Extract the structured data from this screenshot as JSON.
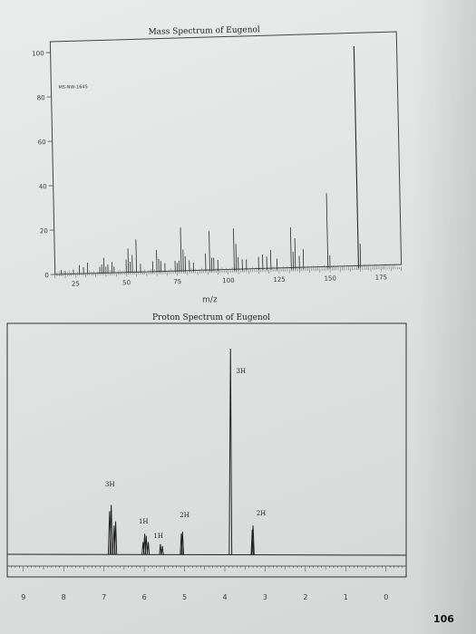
{
  "page_number": "106",
  "chart_data": [
    {
      "type": "bar",
      "title": "Mass Spectrum of Eugenol",
      "xlabel": "m/z",
      "ylabel": "",
      "watermark": "MS-NW-1645",
      "xlim": [
        15,
        185
      ],
      "ylim": [
        0,
        100
      ],
      "x_ticks": [
        25,
        50,
        75,
        100,
        125,
        150,
        175
      ],
      "y_ticks": [
        0,
        20,
        40,
        60,
        80,
        100
      ],
      "peaks": [
        {
          "mz": 18,
          "i": 2
        },
        {
          "mz": 20,
          "i": 1.5
        },
        {
          "mz": 24,
          "i": 2
        },
        {
          "mz": 27,
          "i": 4
        },
        {
          "mz": 29,
          "i": 3
        },
        {
          "mz": 31,
          "i": 5
        },
        {
          "mz": 37,
          "i": 3
        },
        {
          "mz": 38,
          "i": 4
        },
        {
          "mz": 39,
          "i": 7
        },
        {
          "mz": 40,
          "i": 3
        },
        {
          "mz": 41,
          "i": 4
        },
        {
          "mz": 43,
          "i": 5
        },
        {
          "mz": 44,
          "i": 3
        },
        {
          "mz": 50,
          "i": 6
        },
        {
          "mz": 51,
          "i": 11
        },
        {
          "mz": 52,
          "i": 5
        },
        {
          "mz": 53,
          "i": 8
        },
        {
          "mz": 55,
          "i": 15
        },
        {
          "mz": 57,
          "i": 4
        },
        {
          "mz": 63,
          "i": 5
        },
        {
          "mz": 65,
          "i": 10
        },
        {
          "mz": 66,
          "i": 6
        },
        {
          "mz": 67,
          "i": 5
        },
        {
          "mz": 69,
          "i": 4
        },
        {
          "mz": 74,
          "i": 5
        },
        {
          "mz": 75,
          "i": 4
        },
        {
          "mz": 76,
          "i": 5
        },
        {
          "mz": 77,
          "i": 20
        },
        {
          "mz": 78,
          "i": 10
        },
        {
          "mz": 79,
          "i": 7
        },
        {
          "mz": 81,
          "i": 5
        },
        {
          "mz": 83,
          "i": 4
        },
        {
          "mz": 89,
          "i": 8
        },
        {
          "mz": 91,
          "i": 18
        },
        {
          "mz": 92,
          "i": 6
        },
        {
          "mz": 93,
          "i": 6
        },
        {
          "mz": 95,
          "i": 5
        },
        {
          "mz": 103,
          "i": 19
        },
        {
          "mz": 104,
          "i": 12
        },
        {
          "mz": 105,
          "i": 6
        },
        {
          "mz": 107,
          "i": 5
        },
        {
          "mz": 109,
          "i": 5
        },
        {
          "mz": 115,
          "i": 6
        },
        {
          "mz": 117,
          "i": 7
        },
        {
          "mz": 119,
          "i": 6
        },
        {
          "mz": 121,
          "i": 9
        },
        {
          "mz": 124,
          "i": 5
        },
        {
          "mz": 131,
          "i": 19
        },
        {
          "mz": 132,
          "i": 8
        },
        {
          "mz": 133,
          "i": 14
        },
        {
          "mz": 135,
          "i": 6
        },
        {
          "mz": 137,
          "i": 9
        },
        {
          "mz": 149,
          "i": 34
        },
        {
          "mz": 150,
          "i": 6
        },
        {
          "mz": 164,
          "i": 100
        },
        {
          "mz": 165,
          "i": 11
        }
      ]
    },
    {
      "type": "line",
      "title": "Proton Spectrum of Eugenol",
      "xlabel": "",
      "ylabel": "",
      "xlim": [
        9.4,
        -0.5
      ],
      "x_ticks": [
        9,
        8,
        7,
        6,
        5,
        4,
        3,
        2,
        1,
        0
      ],
      "baseline_rel": 0.0,
      "peaks": [
        {
          "ppm": 6.86,
          "h": 0.21,
          "w": 1.5
        },
        {
          "ppm": 6.82,
          "h": 0.24,
          "w": 1.5
        },
        {
          "ppm": 6.75,
          "h": 0.14,
          "w": 1.2
        },
        {
          "ppm": 6.71,
          "h": 0.16,
          "w": 1.2
        },
        {
          "ppm": 6.03,
          "h": 0.06,
          "w": 1.1
        },
        {
          "ppm": 5.99,
          "h": 0.1,
          "w": 1.1
        },
        {
          "ppm": 5.95,
          "h": 0.09,
          "w": 1.1
        },
        {
          "ppm": 5.9,
          "h": 0.06,
          "w": 1.1
        },
        {
          "ppm": 5.6,
          "h": 0.05,
          "w": 1.0
        },
        {
          "ppm": 5.55,
          "h": 0.04,
          "w": 1.0
        },
        {
          "ppm": 5.08,
          "h": 0.1,
          "w": 1.2
        },
        {
          "ppm": 5.05,
          "h": 0.11,
          "w": 1.2
        },
        {
          "ppm": 3.86,
          "h": 1.0,
          "w": 1.4
        },
        {
          "ppm": 3.32,
          "h": 0.12,
          "w": 1.2
        },
        {
          "ppm": 3.3,
          "h": 0.14,
          "w": 1.2
        }
      ],
      "annotations": [
        {
          "text": "3H",
          "ppm": 6.85,
          "y": 0.33
        },
        {
          "text": "1H",
          "ppm": 6.02,
          "y": 0.15
        },
        {
          "text": "1H",
          "ppm": 5.65,
          "y": 0.08
        },
        {
          "text": "2H",
          "ppm": 5.0,
          "y": 0.18
        },
        {
          "text": "3H",
          "ppm": 3.6,
          "y": 0.88
        },
        {
          "text": "2H",
          "ppm": 3.1,
          "y": 0.19
        }
      ]
    }
  ]
}
